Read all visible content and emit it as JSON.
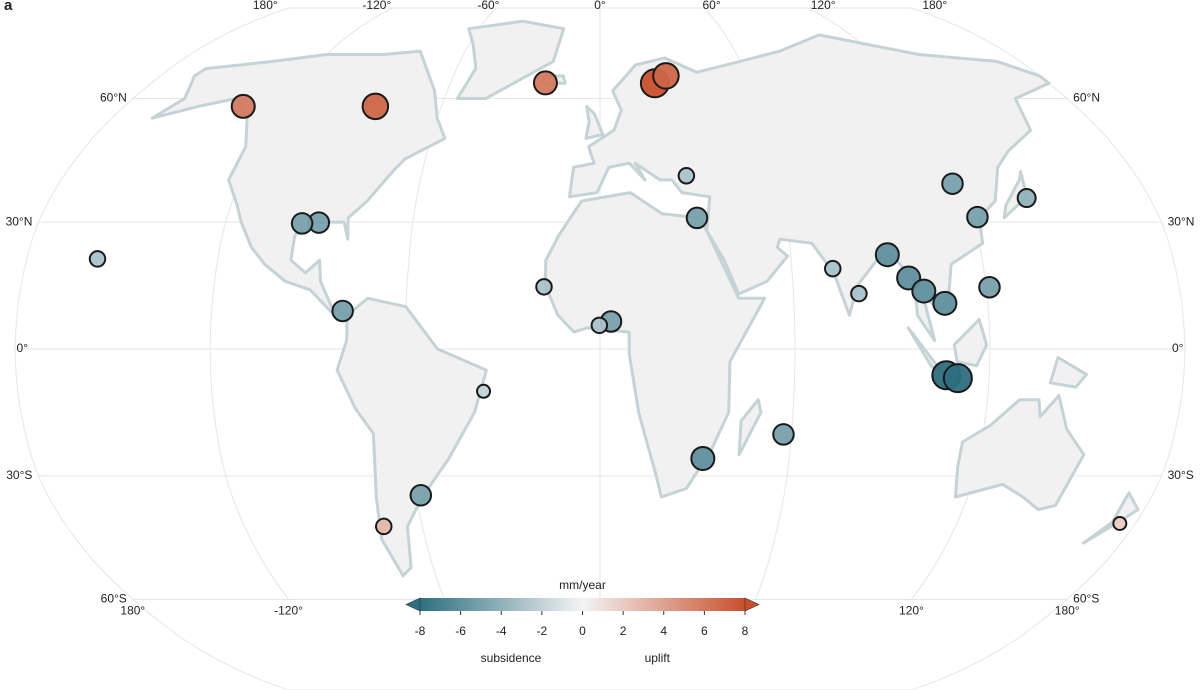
{
  "panel_label": "a",
  "chart_data": {
    "type": "map",
    "title": "mm/year",
    "lon_ticks_top": [
      {
        "value": -180,
        "label": "180°"
      },
      {
        "value": -120,
        "label": "-120°"
      },
      {
        "value": -60,
        "label": "-60°"
      },
      {
        "value": 0,
        "label": "0°"
      },
      {
        "value": 60,
        "label": "60°"
      },
      {
        "value": 120,
        "label": "120°"
      },
      {
        "value": 180,
        "label": "180°"
      }
    ],
    "lon_ticks_bottom": [
      {
        "value": -180,
        "label": "180°"
      },
      {
        "value": -120,
        "label": "-120°"
      },
      {
        "value": 120,
        "label": "120°"
      },
      {
        "value": 180,
        "label": "180°"
      }
    ],
    "lat_ticks": [
      {
        "value": 60,
        "label": "60°N"
      },
      {
        "value": 30,
        "label": "30°N"
      },
      {
        "value": 0,
        "label": "0°"
      },
      {
        "value": -30,
        "label": "30°S"
      },
      {
        "value": -60,
        "label": "60°S"
      }
    ],
    "colorbar": {
      "lim": [
        -8,
        8
      ],
      "ticks": [
        -8,
        -6,
        -4,
        -2,
        0,
        2,
        4,
        6,
        8
      ],
      "colors": {
        "low": "#2d6f80",
        "mid": "#f4f4f4",
        "high": "#c8502d"
      },
      "low_label": "subsidence",
      "high_label": "uplift"
    },
    "points": {
      "lon": [
        106.8,
        110.4,
        90.4,
        96.2,
        100.5,
        106.7,
        121.0,
        121.5,
        117.2,
        139.7,
        72.8,
        80.3,
        29.0,
        31.2,
        3.4,
        -0.2,
        -17.4,
        -90.1,
        -95.4,
        -79.5,
        -58.4,
        32.6,
        57.5,
        -157.8,
        -21.9,
        -85.0,
        22.0,
        27.0,
        -135.0,
        -73.0,
        -36.0,
        174.8
      ],
      "lat": [
        -6.2,
        -6.9,
        22.3,
        16.8,
        13.7,
        10.8,
        14.6,
        31.2,
        39.1,
        35.7,
        19.0,
        13.1,
        41.0,
        31.0,
        6.5,
        5.6,
        14.7,
        29.9,
        29.7,
        9.0,
        -34.6,
        -25.9,
        -20.2,
        21.3,
        64.1,
        58.0,
        64.0,
        66.0,
        58.0,
        -42.0,
        -10.0,
        -41.3
      ],
      "values": [
        -8,
        -8,
        -6,
        -6,
        -6,
        -6,
        -5,
        -5,
        -5,
        -4,
        -3,
        -3,
        -3,
        -5,
        -5,
        -3,
        -3,
        -5,
        -5,
        -5,
        -5,
        -6,
        -5,
        -3,
        6,
        7,
        8,
        7,
        6,
        3,
        -2,
        2
      ]
    }
  }
}
